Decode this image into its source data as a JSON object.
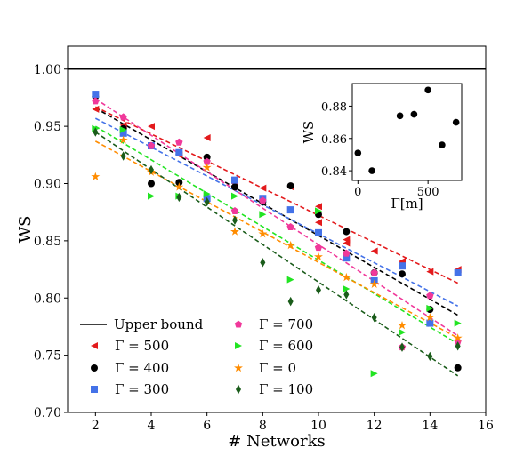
{
  "chart_data": [
    {
      "type": "scatter",
      "xlabel": "# Networks",
      "ylabel": "WS",
      "xlim": [
        1,
        16
      ],
      "ylim": [
        0.7,
        1.02
      ],
      "xticks": [
        2,
        4,
        6,
        8,
        10,
        12,
        14,
        16
      ],
      "yticks": [
        0.7,
        0.75,
        0.8,
        0.85,
        0.9,
        0.95,
        1.0
      ],
      "xtick_labels": [
        "2",
        "4",
        "6",
        "8",
        "10",
        "12",
        "14",
        "16"
      ],
      "ytick_labels": [
        "0.70",
        "0.75",
        "0.80",
        "0.85",
        "0.90",
        "0.95",
        "1.00"
      ],
      "legend_position": "lower-left",
      "grid": false,
      "upper_bound": {
        "name": "Upper bound",
        "y": 1.0,
        "color": "#000000"
      },
      "series": [
        {
          "name": "Γ = 500",
          "marker": "triangle-left",
          "color": "#e31a1c",
          "x": [
            2,
            3,
            4,
            5,
            6,
            7,
            8,
            9,
            10,
            10,
            11,
            11,
            12,
            13,
            13,
            14,
            15
          ],
          "y": [
            0.965,
            0.951,
            0.95,
            0.925,
            0.94,
            0.9,
            0.896,
            0.897,
            0.866,
            0.88,
            0.848,
            0.851,
            0.841,
            0.832,
            0.831,
            0.823,
            0.825
          ],
          "fit": [
            0.967,
            0.813
          ]
        },
        {
          "name": "Γ = 400",
          "marker": "circle",
          "color": "#000000",
          "x": [
            2,
            3,
            4,
            5,
            6,
            7,
            8,
            9,
            10,
            11,
            12,
            13,
            14,
            15
          ],
          "y": [
            0.976,
            0.948,
            0.9,
            0.901,
            0.923,
            0.897,
            0.884,
            0.898,
            0.873,
            0.858,
            0.822,
            0.821,
            0.79,
            0.739
          ],
          "fit": [
            0.966,
            0.785
          ]
        },
        {
          "name": "Γ = 300",
          "marker": "square",
          "color": "#4472e8",
          "x": [
            2,
            3,
            4,
            5,
            6,
            7,
            8,
            9,
            10,
            11,
            12,
            13,
            14,
            15
          ],
          "y": [
            0.978,
            0.944,
            0.933,
            0.927,
            0.887,
            0.903,
            0.887,
            0.877,
            0.857,
            0.835,
            0.815,
            0.828,
            0.778,
            0.822
          ],
          "fit": [
            0.957,
            0.793
          ]
        },
        {
          "name": "Γ = 700",
          "marker": "pentagon",
          "color": "#f0389a",
          "x": [
            2,
            3,
            4,
            5,
            6,
            7,
            8,
            9,
            10,
            11,
            12,
            13,
            14,
            15
          ],
          "y": [
            0.972,
            0.958,
            0.933,
            0.936,
            0.919,
            0.876,
            0.885,
            0.862,
            0.844,
            0.839,
            0.822,
            0.757,
            0.802,
            0.762
          ],
          "fit": [
            0.974,
            0.767
          ]
        },
        {
          "name": "Γ = 600",
          "marker": "triangle-right",
          "color": "#22e422",
          "x": [
            2,
            3,
            4,
            5,
            6,
            7,
            8,
            9,
            10,
            11,
            12,
            13,
            14,
            15
          ],
          "y": [
            0.948,
            0.947,
            0.889,
            0.889,
            0.891,
            0.889,
            0.873,
            0.816,
            0.876,
            0.808,
            0.734,
            0.77,
            0.791,
            0.778
          ],
          "fit": [
            0.95,
            0.76
          ]
        },
        {
          "name": "Γ = 0",
          "marker": "star",
          "color": "#ff8c00",
          "x": [
            2,
            3,
            4,
            5,
            6,
            7,
            8,
            9,
            10,
            11,
            12,
            13,
            14,
            15
          ],
          "y": [
            0.906,
            0.938,
            0.91,
            0.897,
            0.914,
            0.858,
            0.856,
            0.846,
            0.836,
            0.818,
            0.812,
            0.776,
            0.783,
            0.765
          ],
          "fit": [
            0.937,
            0.765
          ]
        },
        {
          "name": "Γ = 100",
          "marker": "diamond",
          "color": "#1a5c1a",
          "x": [
            2,
            3,
            4,
            5,
            6,
            7,
            8,
            9,
            10,
            11,
            12,
            13,
            14,
            15
          ],
          "y": [
            0.945,
            0.924,
            0.912,
            0.888,
            0.884,
            0.868,
            0.831,
            0.797,
            0.807,
            0.803,
            0.783,
            0.757,
            0.749,
            0.758
          ],
          "fit": [
            0.945,
            0.732
          ]
        }
      ]
    },
    {
      "type": "scatter",
      "xlabel": "Γ[m]",
      "ylabel": "WS",
      "xlim": [
        -40,
        740
      ],
      "ylim": [
        0.834,
        0.894
      ],
      "xticks": [
        0,
        500
      ],
      "yticks": [
        0.84,
        0.86,
        0.88
      ],
      "xtick_labels": [
        "0",
        "500"
      ],
      "ytick_labels": [
        "0.84",
        "0.86",
        "0.88"
      ],
      "series": [
        {
          "color": "#000000",
          "x": [
            0,
            100,
            300,
            400,
            500,
            600,
            700
          ],
          "y": [
            0.851,
            0.84,
            0.874,
            0.875,
            0.89,
            0.856,
            0.87
          ]
        }
      ]
    }
  ]
}
